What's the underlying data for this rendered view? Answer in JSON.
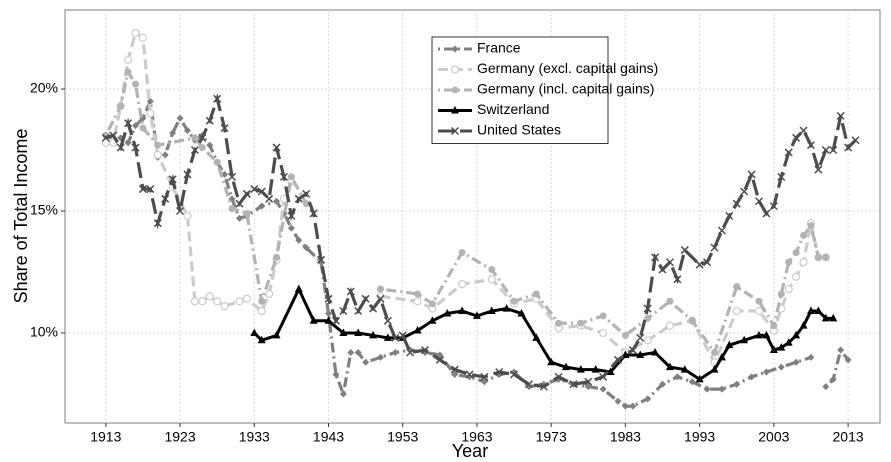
{
  "chart_data": {
    "type": "line",
    "x_label": "Year",
    "y_label": "Share of Total Income",
    "xlim": [
      1907.5,
      2017.3
    ],
    "ylim": [
      6.31,
      23.24
    ],
    "xticks": [
      1913,
      1923,
      1933,
      1943,
      1953,
      1963,
      1973,
      1983,
      1993,
      2003,
      2013
    ],
    "yticks": [
      {
        "value": 10,
        "label": "10%"
      },
      {
        "value": 15,
        "label": "15%"
      },
      {
        "value": 20,
        "label": "20%"
      }
    ],
    "grid": true,
    "legend": "top",
    "series": [
      {
        "name": "France",
        "color": "#808080",
        "marker": "diamond",
        "linestyle": "dotdash",
        "x": [
          1915,
          1916,
          1917,
          1918,
          1919,
          1920,
          1921,
          1922,
          1923,
          1924,
          1925,
          1926,
          1927,
          1928,
          1929,
          1930,
          1931,
          1932,
          1934,
          1936,
          1937,
          1938,
          1939,
          1940,
          1942,
          1943,
          1944,
          1945,
          1946,
          1947,
          1948,
          1950,
          1952,
          1954,
          1956,
          1958,
          1960,
          1962,
          1964,
          1966,
          1968,
          1970,
          1972,
          1974,
          1976,
          1978,
          1980,
          1982,
          1983,
          1984,
          1986,
          1988,
          1990,
          1992,
          1994,
          1996,
          1998,
          2000,
          2002,
          2004,
          2006,
          2008,
          2009,
          2010,
          2011,
          2012,
          2013
        ],
        "values": [
          18.0,
          17.8,
          18.5,
          18.8,
          19.5,
          17.2,
          17.3,
          18.2,
          18.8,
          18.3,
          17.9,
          18.1,
          17.7,
          17.0,
          16.5,
          15.5,
          14.7,
          14.8,
          15.2,
          15.4,
          14.9,
          14.3,
          13.8,
          13.5,
          12.9,
          10.8,
          8.3,
          7.5,
          9.2,
          9.2,
          8.8,
          9.0,
          9.2,
          9.3,
          9.2,
          9.1,
          8.3,
          8.2,
          8.0,
          8.3,
          8.4,
          7.8,
          7.9,
          8.1,
          7.9,
          7.8,
          7.7,
          7.2,
          7.0,
          7.0,
          7.3,
          7.9,
          8.2,
          8.0,
          7.7,
          7.7,
          7.9,
          8.2,
          8.4,
          8.6,
          8.8,
          9.0,
          null,
          7.8,
          8.1,
          9.3,
          8.9
        ]
      },
      {
        "name": "Germany (excl. capital gains)",
        "color": "#cccccc",
        "marker": "open-circle",
        "linestyle": "dashed",
        "x": [
          1913,
          1914,
          1915,
          1916,
          1917,
          1918,
          1919,
          1920,
          1922,
          1924,
          1925,
          1926,
          1927,
          1928,
          1929,
          1931,
          1932,
          1934,
          1935,
          1936,
          1937,
          1938,
          1944,
          1950,
          1955,
          1957,
          1961,
          1965,
          1968,
          1971,
          1974,
          1977,
          1980,
          1983,
          1986,
          1989,
          1992,
          1995,
          1998,
          2001,
          2003,
          2004,
          2005,
          2006,
          2007,
          2008,
          2009,
          2010
        ],
        "values": [
          17.8,
          17.8,
          19.3,
          21.2,
          22.3,
          22.1,
          19.0,
          17.3,
          16.0,
          14.8,
          11.3,
          11.3,
          11.5,
          11.3,
          11.1,
          11.3,
          11.4,
          10.9,
          11.6,
          13.0,
          15.5,
          16.2,
          null,
          11.5,
          11.3,
          11.0,
          12.0,
          12.2,
          11.2,
          11.4,
          10.2,
          10.3,
          10.0,
          9.2,
          9.7,
          10.3,
          10.5,
          8.8,
          10.9,
          10.9,
          10.1,
          11.0,
          11.8,
          12.3,
          12.9,
          14.5,
          13.1,
          13.1
        ]
      },
      {
        "name": "Germany (incl. capital gains)",
        "color": "#b3b3b3",
        "marker": "circle",
        "linestyle": "dotdash",
        "x": [
          1913,
          1915,
          1916,
          1917,
          1918,
          1920,
          1925,
          1926,
          1928,
          1930,
          1932,
          1934,
          1936,
          1938,
          1940,
          1944,
          1950,
          1955,
          1957,
          1961,
          1965,
          1968,
          1971,
          1974,
          1977,
          1980,
          1983,
          1986,
          1989,
          1992,
          1995,
          1998,
          2001,
          2003,
          2004,
          2005,
          2006,
          2007,
          2008,
          2009,
          2010
        ],
        "values": [
          18.1,
          19.3,
          20.7,
          20.2,
          18.4,
          17.7,
          18.0,
          17.6,
          17.0,
          15.1,
          14.9,
          11.3,
          13.1,
          16.4,
          15.3,
          null,
          11.8,
          11.6,
          11.2,
          13.3,
          12.6,
          11.3,
          11.6,
          10.4,
          10.4,
          10.7,
          9.9,
          10.6,
          11.3,
          10.5,
          9.2,
          11.9,
          11.3,
          10.3,
          11.6,
          12.9,
          13.3,
          14.0,
          14.4,
          13.1,
          13.1
        ]
      },
      {
        "name": "Switzerland",
        "color": "#000000",
        "marker": "triangle",
        "linestyle": "solid",
        "x": [
          1933,
          1934,
          1936,
          1939,
          1941,
          1943,
          1945,
          1947,
          1949,
          1951,
          1953,
          1955,
          1957,
          1959,
          1961,
          1963,
          1965,
          1967,
          1969,
          1971,
          1973,
          1975,
          1977,
          1979,
          1981,
          1983,
          1985,
          1987,
          1989,
          1991,
          1993,
          1995,
          1996,
          1997,
          1999,
          2001,
          2002,
          2003,
          2004,
          2005,
          2006,
          2007,
          2008,
          2009,
          2010,
          2011
        ],
        "values": [
          10.0,
          9.7,
          9.9,
          11.8,
          10.5,
          10.5,
          10.0,
          10.0,
          9.9,
          9.8,
          9.8,
          10.1,
          10.5,
          10.8,
          10.9,
          10.7,
          10.9,
          11.0,
          10.8,
          9.8,
          8.8,
          8.6,
          8.5,
          8.5,
          8.4,
          9.1,
          9.1,
          9.2,
          8.6,
          8.5,
          8.1,
          8.5,
          9.0,
          9.5,
          9.7,
          9.9,
          9.9,
          9.3,
          9.4,
          9.6,
          9.9,
          10.3,
          10.9,
          10.9,
          10.6,
          10.6
        ]
      },
      {
        "name": "United States",
        "color": "#4d4d4d",
        "marker": "cross",
        "linestyle": "longdash",
        "x": [
          1913,
          1914,
          1915,
          1916,
          1917,
          1918,
          1919,
          1920,
          1921,
          1922,
          1923,
          1924,
          1925,
          1926,
          1927,
          1928,
          1929,
          1930,
          1931,
          1932,
          1933,
          1934,
          1935,
          1936,
          1937,
          1938,
          1939,
          1940,
          1941,
          1942,
          1943,
          1944,
          1945,
          1946,
          1947,
          1948,
          1949,
          1950,
          1951,
          1952,
          1953,
          1954,
          1956,
          1958,
          1960,
          1962,
          1964,
          1966,
          1968,
          1970,
          1972,
          1974,
          1976,
          1978,
          1980,
          1982,
          1984,
          1985,
          1986,
          1987,
          1988,
          1989,
          1990,
          1991,
          1993,
          1994,
          1995,
          1996,
          1997,
          1998,
          1999,
          2000,
          2001,
          2002,
          2003,
          2004,
          2005,
          2006,
          2007,
          2008,
          2009,
          2010,
          2011,
          2012,
          2013,
          2014
        ],
        "values": [
          18.0,
          18.1,
          17.6,
          18.6,
          17.6,
          15.9,
          15.9,
          14.5,
          15.5,
          16.3,
          15.0,
          16.5,
          17.5,
          18.0,
          18.7,
          19.6,
          18.4,
          16.4,
          15.3,
          15.7,
          15.9,
          15.8,
          15.5,
          17.6,
          16.4,
          14.8,
          15.5,
          15.7,
          14.9,
          13.0,
          11.4,
          10.5,
          10.9,
          11.7,
          10.9,
          11.4,
          11.0,
          11.4,
          10.5,
          9.8,
          9.9,
          9.2,
          9.3,
          8.9,
          8.5,
          8.3,
          8.2,
          8.4,
          8.3,
          7.9,
          7.8,
          8.2,
          7.9,
          8.0,
          8.2,
          8.9,
          9.3,
          9.8,
          11.0,
          13.1,
          12.6,
          12.9,
          12.2,
          13.4,
          12.8,
          12.9,
          13.5,
          14.2,
          14.8,
          15.3,
          15.8,
          16.5,
          15.4,
          14.9,
          15.2,
          16.4,
          17.4,
          18.0,
          18.3,
          17.7,
          16.7,
          17.5,
          17.5,
          18.9,
          17.6,
          17.9
        ]
      }
    ]
  }
}
